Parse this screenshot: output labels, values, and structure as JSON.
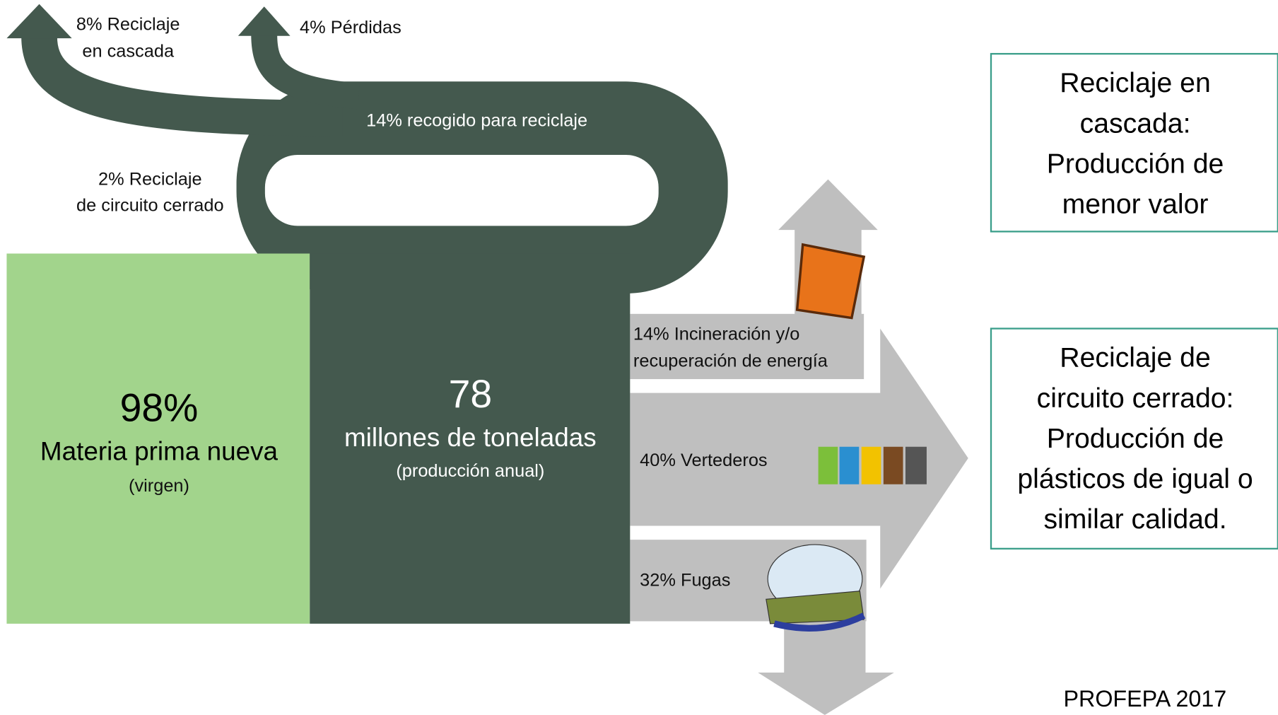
{
  "flows": {
    "cascade": [
      "8% Reciclaje",
      "en cascada"
    ],
    "losses": "4% Pérdidas",
    "collected": "14% recogido para reciclaje",
    "closed_loop": [
      "2% Reciclaje",
      "de circuito cerrado"
    ],
    "incineration": [
      "14% Incineración y/o",
      "recuperación de energía"
    ],
    "landfill": "40% Vertederos",
    "leakage": "32% Fugas"
  },
  "virgin": {
    "value": "98%",
    "label": "Materia prima nueva",
    "note": "(virgen)"
  },
  "production": {
    "value": "78",
    "label": "millones de toneladas",
    "note": "(producción anual)"
  },
  "notes": [
    [
      "Reciclaje en",
      "cascada:",
      "Producción de",
      "menor valor"
    ],
    [
      "Reciclaje de",
      "circuito cerrado:",
      "Producción de",
      "plásticos de igual o",
      "similar calidad."
    ]
  ],
  "source": "PROFEPA 2017"
}
